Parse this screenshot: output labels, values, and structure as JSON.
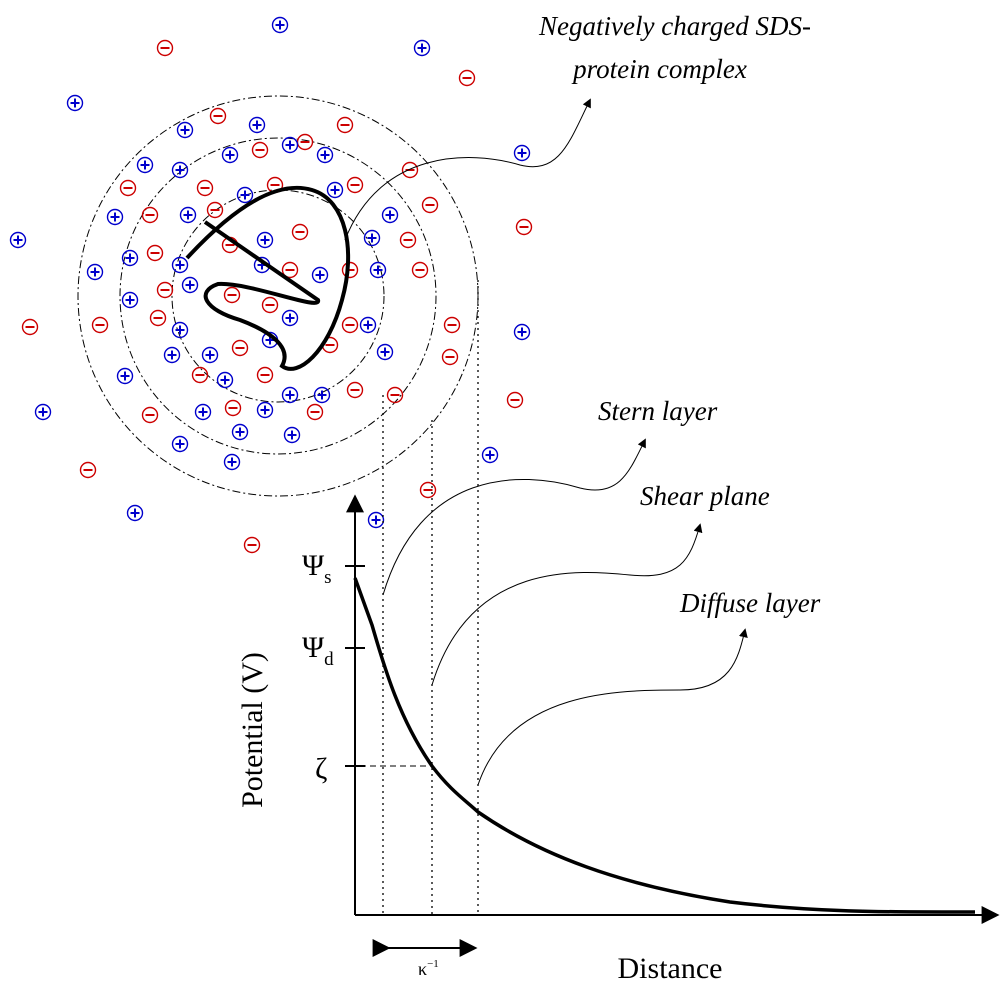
{
  "labels": {
    "complex": [
      "Negatively charged SDS-",
      "protein complex"
    ],
    "stern": "Stern layer",
    "shear": "Shear plane",
    "diffuse": "Diffuse layer",
    "psi_s": {
      "symbol": "Ψ",
      "subscript": "s"
    },
    "psi_d": {
      "symbol": "Ψ",
      "subscript": "d"
    },
    "zeta": "ζ",
    "y_axis": "Potential (V)",
    "x_axis": "Distance",
    "kappa": {
      "symbol": "κ",
      "superscript": "−1"
    }
  }
}
